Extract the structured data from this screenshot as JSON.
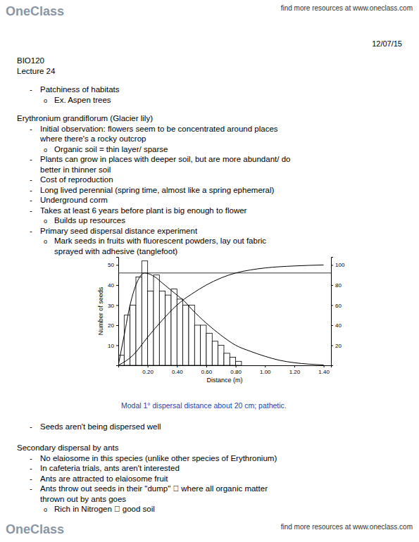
{
  "header": {
    "logo": "OneClass",
    "link": "find more resources at www.oneclass.com",
    "date": "12/07/15"
  },
  "notes_top": [
    {
      "lines": [
        {
          "indent": 0,
          "text": "BIO120"
        },
        {
          "indent": 0,
          "text": "Lecture 24"
        }
      ]
    },
    {
      "lines": [
        {
          "indent": 1,
          "bullet": "-",
          "text": "Patchiness of habitats"
        },
        {
          "indent": 2,
          "bullet": "o",
          "text": "Ex. Aspen trees"
        }
      ]
    },
    {
      "lines": [
        {
          "indent": 0,
          "text": "Erythronium grandiflorum (Glacier lily)"
        },
        {
          "indent": 1,
          "bullet": "-",
          "text": "Initial observation: flowers seem to be concentrated around places"
        },
        {
          "indent": 1,
          "text": "where there's a rocky outcrop"
        },
        {
          "indent": 2,
          "bullet": "o",
          "text": "Organic soil = thin layer/ sparse"
        },
        {
          "indent": 1,
          "bullet": "-",
          "text": "Plants can grow in places with deeper soil, but are more abundant/ do"
        },
        {
          "indent": 1,
          "text": "better in thinner soil"
        },
        {
          "indent": 1,
          "bullet": "-",
          "text": "Cost of reproduction"
        },
        {
          "indent": 1,
          "bullet": "-",
          "text": "Long lived perennial (spring time, almost like a spring ephemeral)"
        },
        {
          "indent": 1,
          "bullet": "-",
          "text": "Underground corm"
        },
        {
          "indent": 1,
          "bullet": "-",
          "text": "Takes at least 6 years before plant is big enough to flower"
        },
        {
          "indent": 2,
          "bullet": "o",
          "text": "Builds up resources"
        },
        {
          "indent": 1,
          "bullet": "-",
          "text": "Primary seed dispersal distance experiment"
        },
        {
          "indent": 2,
          "bullet": "o",
          "text": "Mark seeds in fruits with fluorescent powders, lay out fabric"
        },
        {
          "indent": 2,
          "text": "sprayed with adhesive (tanglefoot)"
        }
      ]
    }
  ],
  "chart_data": {
    "type": "histogram",
    "xlabel": "Distance (m)",
    "ylabel": "Number of seeds",
    "caption": "Modal 1° dispersal distance about 20 cm; pathetic.",
    "bins": [
      0,
      0.04,
      0.08,
      0.12,
      0.16,
      0.2,
      0.24,
      0.28,
      0.32,
      0.36,
      0.4,
      0.44,
      0.48,
      0.52,
      0.56,
      0.6,
      0.64,
      0.68,
      0.72,
      0.76,
      0.8,
      0.84
    ],
    "values": [
      5,
      25,
      30,
      44,
      52,
      37,
      45,
      37,
      35,
      38,
      33,
      30,
      30,
      20,
      20,
      16,
      12,
      10,
      6,
      4,
      2
    ],
    "color": "#ffffff",
    "curves": [
      {
        "x": [
          0,
          0.04,
          0.08,
          0.12,
          0.18,
          0.25,
          0.3,
          0.4,
          0.45,
          0.5,
          0.6,
          0.7,
          0.8,
          0.9,
          1.0,
          1.1,
          1.2,
          1.3,
          1.4
        ],
        "values": [
          0,
          15,
          30,
          40,
          46,
          44,
          41,
          35,
          32,
          28,
          21,
          15,
          10,
          7,
          4.5,
          2.5,
          1.3,
          0.6,
          0.2
        ]
      },
      {
        "x": [
          0,
          0.1,
          0.2,
          0.3,
          0.4,
          0.45,
          0.5,
          0.6,
          0.7,
          0.8,
          0.9,
          1.0,
          1.2,
          1.4
        ],
        "values": [
          0,
          10,
          28,
          45,
          60,
          66,
          71,
          80,
          87,
          92,
          95,
          97,
          99,
          100
        ],
        "axis": "y2"
      }
    ],
    "hline": 46,
    "xlim": [
      0,
      1.45
    ],
    "ylim": [
      0,
      54
    ],
    "y2lim": [
      0,
      108
    ],
    "xticks": [
      {
        "value": 0.2,
        "label": "0.20"
      },
      {
        "value": 0.4,
        "label": "0.40"
      },
      {
        "value": 0.6,
        "label": "0.60"
      },
      {
        "value": 0.8,
        "label": "0.80"
      },
      {
        "value": 1.0,
        "label": "1.00"
      },
      {
        "value": 1.2,
        "label": "1.20"
      },
      {
        "value": 1.4,
        "label": "1.40"
      }
    ],
    "yticks": [
      10,
      20,
      30,
      40,
      50
    ],
    "y2ticks": [
      20,
      40,
      60,
      80,
      100
    ],
    "grid": false
  },
  "notes_bottom": [
    {
      "lines": [
        {
          "indent": 1,
          "bullet": "-",
          "text": "Seeds aren't being dispersed well"
        }
      ]
    },
    {
      "lines": [
        {
          "indent": 0,
          "text": "Secondary dispersal by ants"
        },
        {
          "indent": 1,
          "bullet": "-",
          "text": "No elaiosome in this species (unlike other species of Erythronium)"
        },
        {
          "indent": 1,
          "bullet": "-",
          "text": "In cafeteria trials, ants aren't interested"
        },
        {
          "indent": 1,
          "bullet": "-",
          "text": "Ants are attracted to elaiosome fruit"
        },
        {
          "indent": 1,
          "bullet": "-",
          "text": "Ants throw out seeds in their \"dump\"  where all organic matter"
        },
        {
          "indent": 1,
          "text": "thrown out by ants goes"
        },
        {
          "indent": 2,
          "bullet": "o",
          "text": "Rich in Nitrogen  good soil"
        }
      ]
    }
  ],
  "footer": {
    "logo": "OneClass",
    "link": "find more resources at www.oneclass.com"
  }
}
